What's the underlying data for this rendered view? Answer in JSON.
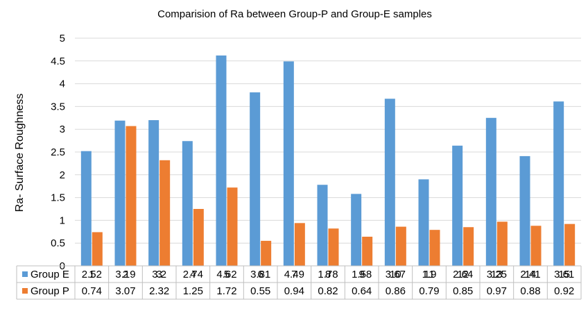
{
  "chart_data": {
    "type": "bar",
    "title": "Comparision of Ra between Group-P and Group-E samples",
    "xlabel": "",
    "ylabel": "Ra- Surface Roughness",
    "ylim": [
      0,
      5
    ],
    "yticks": [
      "0",
      "0.5",
      "1",
      "1.5",
      "2",
      "2.5",
      "3",
      "3.5",
      "4",
      "4.5",
      "5"
    ],
    "grid": true,
    "legend": "data-table",
    "categories": [
      "1",
      "2",
      "3",
      "4",
      "5",
      "6",
      "7",
      "8",
      "9",
      "10",
      "11",
      "12",
      "13",
      "14",
      "15"
    ],
    "series": [
      {
        "name": "Group E",
        "color": "#5B9BD5",
        "values": [
          2.52,
          3.19,
          3.2,
          2.74,
          4.62,
          3.81,
          4.49,
          1.78,
          1.58,
          3.67,
          1.9,
          2.64,
          3.25,
          2.41,
          3.61
        ],
        "labels": [
          "2.52",
          "3.19",
          "3.2",
          "2.74",
          "4.62",
          "3.81",
          "4.49",
          "1.78",
          "1.58",
          "3.67",
          "1.9",
          "2.64",
          "3.25",
          "2.41",
          "3.61"
        ]
      },
      {
        "name": "Group P",
        "color": "#ED7D31",
        "values": [
          0.74,
          3.07,
          2.32,
          1.25,
          1.72,
          0.55,
          0.94,
          0.82,
          0.64,
          0.86,
          0.79,
          0.85,
          0.97,
          0.88,
          0.92
        ],
        "labels": [
          "0.74",
          "3.07",
          "2.32",
          "1.25",
          "1.72",
          "0.55",
          "0.94",
          "0.82",
          "0.64",
          "0.86",
          "0.79",
          "0.85",
          "0.97",
          "0.88",
          "0.92"
        ]
      }
    ]
  }
}
